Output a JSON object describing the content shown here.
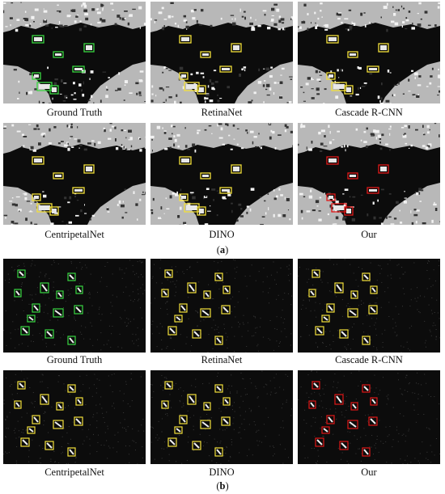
{
  "figure": {
    "a": {
      "label": "(a)",
      "label_letter": "a",
      "captions": [
        "Ground Truth",
        "RetinaNet",
        "Cascade R-CNN",
        "CentripetalNet",
        "DINO",
        "Our"
      ]
    },
    "b": {
      "label": "(b)",
      "label_letter": "b",
      "captions": [
        "Ground Truth",
        "RetinaNet",
        "Cascade R-CNN",
        "CentripetalNet",
        "DINO",
        "Our"
      ]
    }
  },
  "colors": {
    "ground_truth_box": "#39d641",
    "prediction_box": "#f3e03b",
    "ours_box": "#e01818",
    "sea": "#0c0c0c",
    "land": "#b8b8b8"
  }
}
